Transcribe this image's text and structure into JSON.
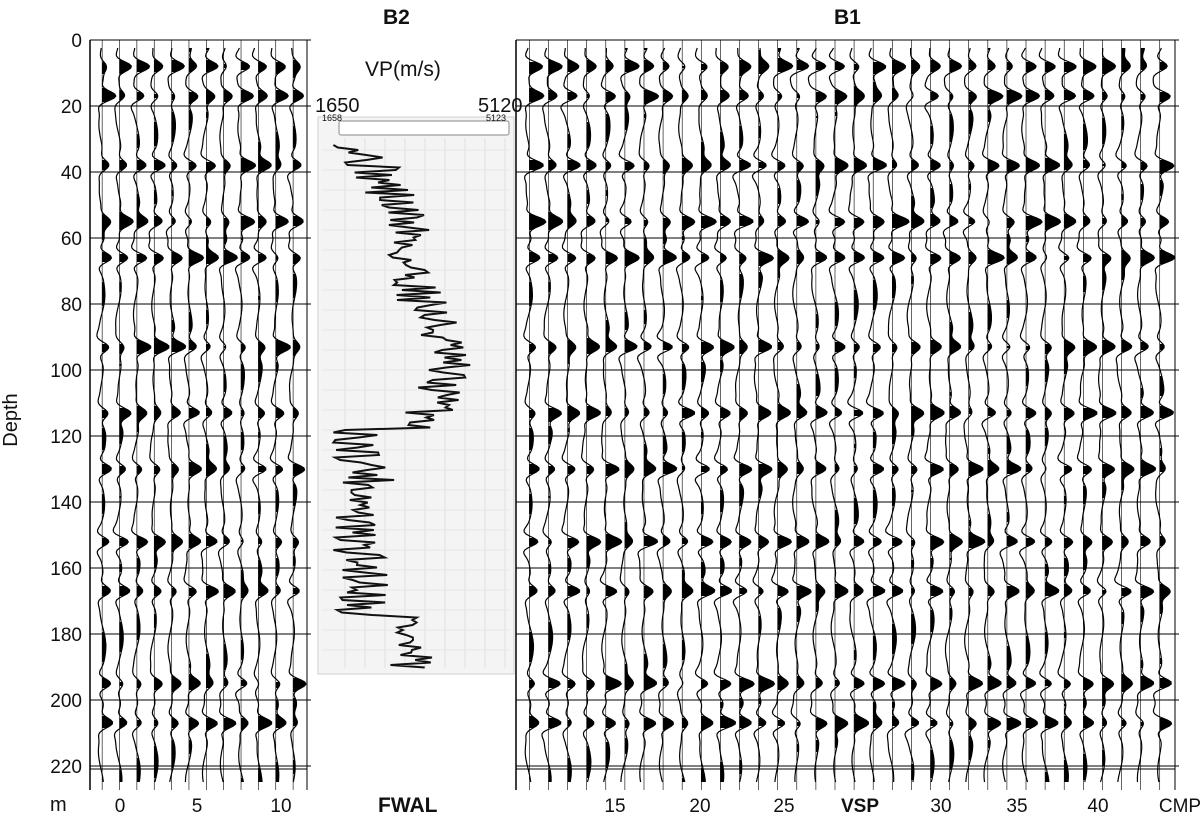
{
  "depth_axis": {
    "label": "Depth",
    "unit": "m",
    "ticks": [
      "0",
      "20",
      "40",
      "60",
      "80",
      "100",
      "120",
      "140",
      "160",
      "180",
      "200",
      "220"
    ],
    "range": [
      0,
      225
    ]
  },
  "left_panel": {
    "bottom_ticks": [
      "0",
      "5",
      "10"
    ]
  },
  "log_panel": {
    "header": "B2",
    "title": "VP(m/s)",
    "min_label": "1650",
    "max_label": "5120",
    "scale_min_label": "1658",
    "scale_max_label": "5123",
    "footer": "FWAL"
  },
  "right_panel": {
    "header": "B1",
    "bottom_ticks": [
      "15",
      "20",
      "25",
      "VSP",
      "30",
      "35",
      "40",
      "CMP"
    ]
  },
  "reflector_depths_m": [
    8,
    17,
    38,
    55,
    66,
    93,
    113,
    130,
    152,
    167,
    195,
    207
  ]
}
